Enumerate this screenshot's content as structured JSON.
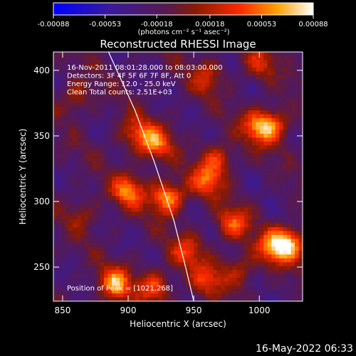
{
  "colorbar": {
    "ticks": [
      "-0.00088",
      "-0.00053",
      "-0.00018",
      "0.00018",
      "0.00053",
      "0.00088"
    ],
    "units": "(photons cm⁻² s⁻¹ asec⁻²)",
    "colors": [
      "#0000ff",
      "#4b0082",
      "#8b2500",
      "#ff2000",
      "#ff9000",
      "#ffff80",
      "#ffffff"
    ]
  },
  "chart_data": {
    "type": "heatmap",
    "title": "Reconstructed RHESSI Image",
    "xlabel": "Heliocentric X (arcsec)",
    "ylabel": "Heliocentric Y (arcsec)",
    "xlim": [
      843,
      1033
    ],
    "ylim": [
      224,
      414
    ],
    "xticks": [
      850,
      900,
      950,
      1000
    ],
    "yticks": [
      250,
      300,
      350,
      400
    ],
    "value_range": [
      -0.00088,
      0.00088
    ],
    "annotations": [
      "16-Nov-2011 08:01:28.000 to 08:03:00.000",
      "Detectors: 3F 4F 5F 6F 7F 8F, Att 0",
      "Energy Range: 12.0 - 25.0 keV",
      "Clean     Total counts: 2.51E+03"
    ],
    "peak_label": "Position of Peak = [1021,268]",
    "peak_position": [
      1021,
      268
    ],
    "hot_spots": [
      {
        "x": 930,
        "y": 303,
        "v": 0.00088
      },
      {
        "x": 900,
        "y": 308,
        "v": 0.0007
      },
      {
        "x": 960,
        "y": 316,
        "v": 0.0006
      },
      {
        "x": 968,
        "y": 333,
        "v": 0.0005
      },
      {
        "x": 980,
        "y": 283,
        "v": 0.0006
      },
      {
        "x": 1000,
        "y": 357,
        "v": 0.0007
      },
      {
        "x": 1012,
        "y": 358,
        "v": 0.0005
      },
      {
        "x": 1022,
        "y": 268,
        "v": 0.00088
      },
      {
        "x": 1010,
        "y": 265,
        "v": 0.0006
      },
      {
        "x": 920,
        "y": 344,
        "v": 0.0007
      },
      {
        "x": 905,
        "y": 352,
        "v": 0.0005
      },
      {
        "x": 890,
        "y": 237,
        "v": 0.0008
      },
      {
        "x": 920,
        "y": 235,
        "v": 0.0006
      },
      {
        "x": 960,
        "y": 240,
        "v": 0.0005
      },
      {
        "x": 985,
        "y": 248,
        "v": 0.0004
      },
      {
        "x": 860,
        "y": 380,
        "v": 0.0004
      },
      {
        "x": 960,
        "y": 395,
        "v": 0.0004
      },
      {
        "x": 1000,
        "y": 405,
        "v": 0.0004
      },
      {
        "x": 865,
        "y": 290,
        "v": 0.0003
      },
      {
        "x": 945,
        "y": 262,
        "v": 0.0005
      }
    ],
    "limb_curve": [
      [
        885,
        414
      ],
      [
        905,
        370
      ],
      [
        920,
        330
      ],
      [
        935,
        285
      ],
      [
        945,
        245
      ],
      [
        950,
        224
      ]
    ]
  },
  "footer": {
    "timestamp": "16-May-2022 06:33"
  }
}
